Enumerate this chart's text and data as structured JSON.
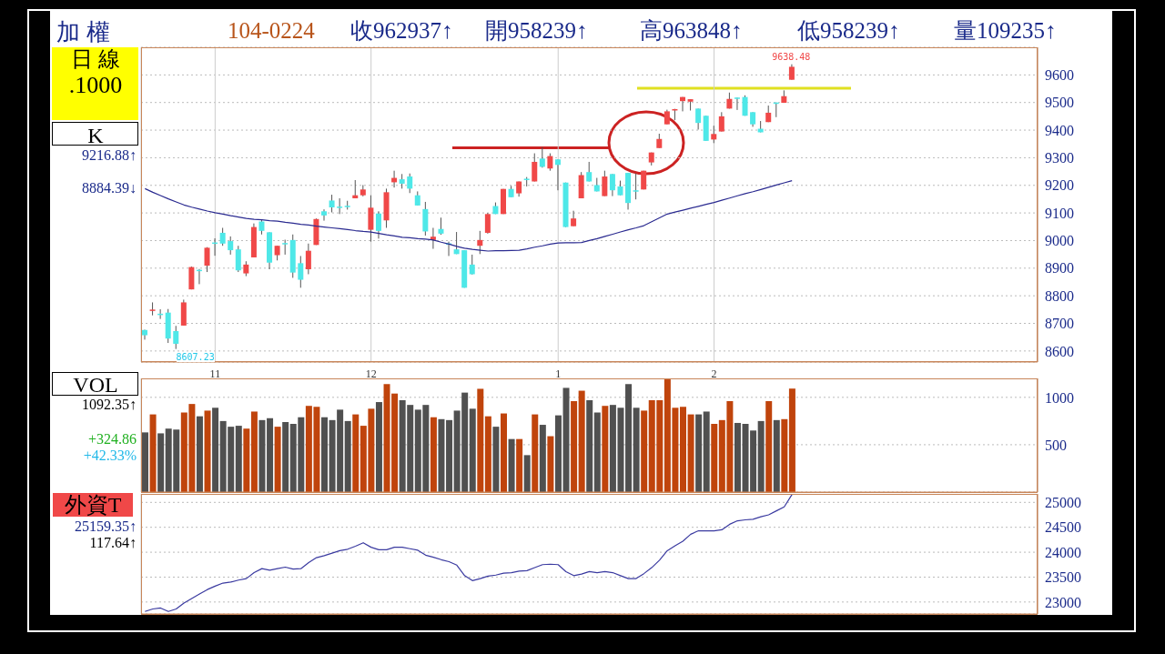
{
  "chart_data": [
    {
      "type": "candlestick",
      "title": "加 權",
      "categories": [
        null,
        null,
        null,
        null,
        null,
        null,
        null,
        null,
        null,
        "11",
        null,
        null,
        null,
        null,
        null,
        null,
        null,
        null,
        null,
        null,
        null,
        null,
        null,
        null,
        null,
        null,
        null,
        null,
        null,
        "12",
        null,
        null,
        null,
        null,
        null,
        null,
        null,
        null,
        null,
        null,
        null,
        null,
        null,
        null,
        null,
        null,
        null,
        null,
        null,
        null,
        null,
        null,
        null,
        "1",
        null,
        null,
        null,
        null,
        null,
        null,
        null,
        null,
        null,
        null,
        null,
        null,
        null,
        null,
        null,
        null,
        null,
        null,
        null,
        "2",
        null,
        null,
        null,
        null,
        null,
        null,
        null,
        null,
        null,
        null,
        null,
        null,
        null,
        null,
        null,
        null,
        null,
        null,
        null,
        null,
        null,
        null,
        null,
        null,
        null,
        null,
        null,
        null,
        null,
        null,
        null,
        null,
        null,
        null,
        null,
        null,
        null,
        null,
        null,
        null,
        null
      ],
      "ohlc": [
        [
          8676,
          8677,
          8641,
          8657
        ],
        [
          8745,
          8776,
          8729,
          8750
        ],
        [
          8735,
          8751,
          8716,
          8731
        ],
        [
          8739,
          8752,
          8629,
          8645
        ],
        [
          8672,
          8691,
          8607.23,
          8626
        ],
        [
          8692,
          8786,
          8692,
          8776
        ],
        [
          8823,
          8906,
          8823,
          8904
        ],
        [
          8894,
          8897,
          8842,
          8890
        ],
        [
          8909,
          8976,
          8886,
          8974
        ],
        [
          8993,
          9008,
          8945,
          8989
        ],
        [
          9028,
          9046,
          8981,
          8989
        ],
        [
          8998,
          9015,
          8949,
          8965
        ],
        [
          8968,
          8981,
          8886,
          8892
        ],
        [
          8881,
          8925,
          8871,
          8913
        ],
        [
          8939,
          9062,
          8939,
          9049
        ],
        [
          9069,
          9075,
          9022,
          9035
        ],
        [
          9030,
          9030,
          8896,
          8920
        ],
        [
          8947,
          8981,
          8928,
          8981
        ],
        [
          8991,
          9003,
          8949,
          8987
        ],
        [
          9002,
          9022,
          8865,
          8884
        ],
        [
          8918,
          8944,
          8829,
          8858
        ],
        [
          8896,
          8989,
          8878,
          8963
        ],
        [
          8984,
          9080,
          8984,
          9078
        ],
        [
          9106,
          9113,
          9072,
          9091
        ],
        [
          9145,
          9166,
          9102,
          9120
        ],
        [
          9123,
          9153,
          9096,
          9119
        ],
        [
          9126,
          9144,
          9112,
          9122
        ],
        [
          9153,
          9219,
          9153,
          9164
        ],
        [
          9164,
          9201,
          9160,
          9185
        ],
        [
          9039,
          9164,
          8996,
          9119
        ],
        [
          9098,
          9106,
          9007,
          9035
        ],
        [
          9073,
          9188,
          9046,
          9175
        ],
        [
          9211,
          9253,
          9192,
          9227
        ],
        [
          9222,
          9241,
          9188,
          9206
        ],
        [
          9232,
          9243,
          9172,
          9188
        ],
        [
          9164,
          9178,
          9127,
          9127
        ],
        [
          9114,
          9140,
          9018,
          9033
        ],
        [
          9002,
          9046,
          8970,
          9014
        ],
        [
          9042,
          9083,
          9021,
          9025
        ],
        [
          8990,
          8996,
          8944,
          8986
        ],
        [
          8968,
          9031,
          8951,
          8951
        ],
        [
          8965,
          8965,
          8829,
          8829
        ],
        [
          8913,
          8949,
          8877,
          8878
        ],
        [
          8981,
          9035,
          8951,
          9002
        ],
        [
          9028,
          9100,
          9025,
          9096
        ],
        [
          9125,
          9138,
          9096,
          9096
        ],
        [
          9096,
          9187,
          9096,
          9187
        ],
        [
          9187,
          9198,
          9157,
          9157
        ],
        [
          9171,
          9214,
          9159,
          9214
        ],
        [
          9224,
          9230,
          9196,
          9220
        ],
        [
          9214,
          9316,
          9214,
          9285
        ],
        [
          9297,
          9338,
          9264,
          9267
        ],
        [
          9261,
          9316,
          9253,
          9306
        ],
        [
          9294,
          9294,
          9182,
          9274
        ],
        [
          9210,
          9210,
          9049,
          9049
        ],
        [
          9052,
          9108,
          9052,
          9080
        ],
        [
          9153,
          9248,
          9153,
          9237
        ],
        [
          9248,
          9285,
          9214,
          9214
        ],
        [
          9201,
          9227,
          9178,
          9178
        ],
        [
          9161,
          9253,
          9161,
          9232
        ],
        [
          9241,
          9241,
          9161,
          9182
        ],
        [
          9196,
          9217,
          9164,
          9164
        ],
        [
          9245,
          9245,
          9112,
          9136
        ],
        [
          9182,
          9243,
          9149,
          9178
        ],
        [
          9185,
          9253,
          9185,
          9253
        ],
        [
          9283,
          9319,
          9272,
          9319
        ],
        [
          9335,
          9387,
          9335,
          9368
        ],
        [
          9421,
          9474,
          9421,
          9468
        ],
        [
          9473,
          9477,
          9436,
          9476
        ],
        [
          9505,
          9520,
          9468,
          9520
        ],
        [
          9503,
          9512,
          9471,
          9512
        ],
        [
          9478,
          9478,
          9402,
          9426
        ],
        [
          9452,
          9452,
          9361,
          9361
        ],
        [
          9366,
          9416,
          9353,
          9386
        ],
        [
          9395,
          9465,
          9395,
          9450
        ],
        [
          9478,
          9536,
          9478,
          9513
        ],
        [
          9518,
          9518,
          9473,
          9516
        ],
        [
          9520,
          9526,
          9452,
          9452
        ],
        [
          9465,
          9465,
          9412,
          9421
        ],
        [
          9405,
          9433,
          9392,
          9392
        ],
        [
          9429,
          9489,
          9429,
          9463
        ],
        [
          9500,
          9500,
          9447,
          9498
        ],
        [
          9499,
          9544,
          9499,
          9523
        ],
        [
          9582.39,
          9638.48,
          9582.39,
          9629.37
        ],
        null,
        null,
        null,
        null,
        null,
        null,
        null,
        null,
        null,
        null,
        null,
        null,
        null,
        null,
        null,
        null,
        null,
        null,
        null,
        null,
        null,
        null,
        null,
        null,
        null,
        null,
        null,
        null,
        null,
        null,
        null
      ],
      "colors": [
        "#4ee8e8",
        "#f04848",
        "#4ee8e8",
        "#4ee8e8",
        "#4ee8e8",
        "#f04848",
        "#f04848",
        "#4ee8e8",
        "#f04848",
        "#4ee8e8",
        "#4ee8e8",
        "#4ee8e8",
        "#4ee8e8",
        "#f04848",
        "#f04848",
        "#4ee8e8",
        "#4ee8e8",
        "#f04848",
        "#4ee8e8",
        "#4ee8e8",
        "#4ee8e8",
        "#f04848",
        "#f04848",
        "#4ee8e8",
        "#4ee8e8",
        "#4ee8e8",
        "#4ee8e8",
        "#f04848",
        "#f04848",
        "#f04848",
        "#4ee8e8",
        "#f04848",
        "#f04848",
        "#4ee8e8",
        "#4ee8e8",
        "#4ee8e8",
        "#4ee8e8",
        "#f04848",
        "#4ee8e8",
        "#4ee8e8",
        "#4ee8e8",
        "#4ee8e8",
        "#4ee8e8",
        "#f04848",
        "#f04848",
        "#4ee8e8",
        "#f04848",
        "#4ee8e8",
        "#f04848",
        "#4ee8e8",
        "#f04848",
        "#4ee8e8",
        "#f04848",
        "#4ee8e8",
        "#4ee8e8",
        "#f04848",
        "#f04848",
        "#4ee8e8",
        "#4ee8e8",
        "#f04848",
        "#4ee8e8",
        "#4ee8e8",
        "#4ee8e8",
        "#4ee8e8",
        "#f04848",
        "#f04848",
        "#f04848",
        "#f04848",
        "#f04848",
        "#f04848",
        "#f04848",
        "#4ee8e8",
        "#4ee8e8",
        "#f04848",
        "#f04848",
        "#f04848",
        "#4ee8e8",
        "#4ee8e8",
        "#4ee8e8",
        "#4ee8e8",
        "#f04848",
        "#4ee8e8",
        "#f04848",
        "#f04848",
        null,
        null,
        null,
        null,
        null,
        null,
        null,
        null,
        null,
        null,
        null,
        null,
        null,
        null,
        null,
        null,
        null,
        null,
        null,
        null,
        null,
        null,
        null,
        null,
        null,
        null,
        null,
        null,
        null,
        null,
        null
      ],
      "series": [
        {
          "type": "line",
          "color": "#2a2a90",
          "values": [
            9188,
            9175,
            9163,
            9151,
            9140,
            9129,
            9121,
            9114,
            9107,
            9101,
            9096,
            9090,
            9085,
            9080,
            9077,
            9075,
            9072,
            9070,
            9066,
            9063,
            9059,
            9056,
            9052,
            9049,
            9046,
            9043,
            9040,
            9036,
            9033,
            9031,
            9026,
            9021,
            9017,
            9012,
            9010,
            9007,
            9005,
            9002,
            8994,
            8987,
            8979,
            8972,
            8968,
            8965,
            8962,
            8963,
            8963,
            8964,
            8965,
            8970,
            8976,
            8981,
            8987,
            8991,
            8992,
            8992,
            8993,
            9000,
            9007,
            9015,
            9023,
            9031,
            9039,
            9046,
            9054,
            9068,
            9082,
            9096,
            9103,
            9110,
            9117,
            9124,
            9131,
            9138,
            9146,
            9154,
            9162,
            9170,
            9177,
            9185,
            9193,
            9201,
            9209,
            9217,
            null,
            null,
            null,
            null,
            null,
            null,
            null,
            null,
            null,
            null,
            null,
            null,
            null,
            null,
            null,
            null,
            null,
            null,
            null,
            null,
            null,
            null,
            null,
            null,
            null,
            null,
            null,
            null,
            null,
            null,
            null
          ]
        }
      ],
      "ylim": [
        8560,
        9700
      ],
      "yticks": [
        8600,
        8700,
        8800,
        8900,
        9000,
        9100,
        9200,
        9300,
        9400,
        9500,
        9600
      ],
      "grid": true,
      "annotations": [
        "104-0224",
        "收962937↑",
        "開958239↑",
        "高963848↑",
        "低958239↑",
        "量109235↑",
        "日 線",
        ".1000",
        "K",
        "9216.88↑",
        "8884.39↓",
        "9638.48",
        "8607.23"
      ]
    },
    {
      "type": "bar",
      "categories": [
        null,
        null,
        null,
        null,
        null,
        null,
        null,
        null,
        null,
        "11",
        null,
        null,
        null,
        null,
        null,
        null,
        null,
        null,
        null,
        null,
        null,
        null,
        null,
        null,
        null,
        null,
        null,
        null,
        null,
        "12",
        null,
        null,
        null,
        null,
        null,
        null,
        null,
        null,
        null,
        null,
        null,
        null,
        null,
        null,
        null,
        null,
        null,
        null,
        null,
        null,
        null,
        null,
        null,
        "1",
        null,
        null,
        null,
        null,
        null,
        null,
        null,
        null,
        null,
        null,
        null,
        null,
        null,
        null,
        null,
        null,
        null,
        null,
        null,
        "2",
        null,
        null,
        null,
        null,
        null,
        null,
        null,
        null,
        null,
        null,
        null,
        null,
        null,
        null,
        null,
        null,
        null,
        null,
        null,
        null,
        null,
        null,
        null,
        null,
        null,
        null,
        null,
        null,
        null,
        null,
        null,
        null,
        null,
        null,
        null,
        null,
        null,
        null,
        null,
        null,
        null
      ],
      "values": [
        630,
        820,
        620,
        670,
        660,
        840,
        930,
        800,
        860,
        890,
        750,
        690,
        700,
        670,
        850,
        760,
        780,
        690,
        740,
        720,
        790,
        910,
        900,
        790,
        760,
        870,
        750,
        820,
        700,
        880,
        950,
        1140,
        1040,
        970,
        920,
        870,
        920,
        790,
        770,
        760,
        860,
        1050,
        880,
        1090,
        800,
        690,
        830,
        560,
        560,
        390,
        820,
        710,
        590,
        810,
        1100,
        960,
        1070,
        970,
        840,
        910,
        920,
        890,
        1140,
        890,
        860,
        970,
        970,
        1190,
        890,
        900,
        820,
        820,
        850,
        720,
        760,
        960,
        730,
        720,
        650,
        750,
        960,
        760,
        770,
        1092.35,
        null,
        null,
        null,
        null,
        null,
        null,
        null,
        null,
        null,
        null,
        null,
        null,
        null,
        null,
        null,
        null,
        null,
        null,
        null,
        null,
        null,
        null,
        null,
        null,
        null,
        null,
        null,
        null,
        null,
        null,
        null
      ],
      "colors": [
        "#505050",
        "#c0440c",
        "#505050",
        "#505050",
        "#505050",
        "#c0440c",
        "#c0440c",
        "#505050",
        "#c0440c",
        "#505050",
        "#505050",
        "#505050",
        "#505050",
        "#c0440c",
        "#c0440c",
        "#505050",
        "#505050",
        "#c0440c",
        "#505050",
        "#505050",
        "#505050",
        "#c0440c",
        "#c0440c",
        "#505050",
        "#505050",
        "#505050",
        "#505050",
        "#c0440c",
        "#c0440c",
        "#c0440c",
        "#505050",
        "#c0440c",
        "#c0440c",
        "#505050",
        "#505050",
        "#505050",
        "#505050",
        "#c0440c",
        "#505050",
        "#505050",
        "#505050",
        "#505050",
        "#505050",
        "#c0440c",
        "#c0440c",
        "#505050",
        "#c0440c",
        "#505050",
        "#c0440c",
        "#505050",
        "#c0440c",
        "#505050",
        "#c0440c",
        "#505050",
        "#505050",
        "#c0440c",
        "#c0440c",
        "#505050",
        "#505050",
        "#c0440c",
        "#505050",
        "#505050",
        "#505050",
        "#505050",
        "#c0440c",
        "#c0440c",
        "#c0440c",
        "#c0440c",
        "#c0440c",
        "#c0440c",
        "#c0440c",
        "#505050",
        "#505050",
        "#c0440c",
        "#c0440c",
        "#c0440c",
        "#505050",
        "#505050",
        "#505050",
        "#505050",
        "#c0440c",
        "#505050",
        "#c0440c",
        "#c0440c",
        null,
        null,
        null,
        null,
        null,
        null,
        null,
        null,
        null,
        null,
        null,
        null,
        null,
        null,
        null,
        null,
        null,
        null,
        null,
        null,
        null,
        null,
        null,
        null,
        null,
        null,
        null,
        null,
        null,
        null,
        null
      ],
      "ylim": [
        0,
        1200
      ],
      "yticks": [
        500,
        1000
      ],
      "grid": true,
      "tick_labels": "y",
      "annotations": [
        "VOL",
        "1092.35↑",
        "+324.86",
        "+42.33%"
      ]
    },
    {
      "type": "line",
      "categories": [
        null,
        null,
        null,
        null,
        null,
        null,
        null,
        null,
        null,
        "11",
        null,
        null,
        null,
        null,
        null,
        null,
        null,
        null,
        null,
        null,
        null,
        null,
        null,
        null,
        null,
        null,
        null,
        null,
        null,
        "12",
        null,
        null,
        null,
        null,
        null,
        null,
        null,
        null,
        null,
        null,
        null,
        null,
        null,
        null,
        null,
        null,
        null,
        null,
        null,
        null,
        null,
        null,
        null,
        "1",
        null,
        null,
        null,
        null,
        null,
        null,
        null,
        null,
        null,
        null,
        null,
        null,
        null,
        null,
        null,
        null,
        null,
        null,
        null,
        "2",
        null,
        null,
        null,
        null,
        null,
        null,
        null,
        null,
        null,
        null,
        null,
        null,
        null,
        null,
        null,
        null,
        null,
        null,
        null,
        null,
        null,
        null,
        null,
        null,
        null,
        null,
        null,
        null,
        null,
        null,
        null,
        null,
        null,
        null,
        null,
        null,
        null,
        null,
        null,
        null,
        null
      ],
      "series": [
        {
          "color": "#3a3aa0",
          "values": [
            22810,
            22860,
            22880,
            22810,
            22860,
            22980,
            23070,
            23160,
            23250,
            23320,
            23380,
            23400,
            23440,
            23470,
            23590,
            23670,
            23640,
            23670,
            23700,
            23660,
            23670,
            23790,
            23890,
            23930,
            23980,
            24030,
            24060,
            24120,
            24190,
            24100,
            24050,
            24050,
            24100,
            24100,
            24070,
            24040,
            23940,
            23900,
            23850,
            23810,
            23740,
            23530,
            23430,
            23470,
            23520,
            23540,
            23580,
            23590,
            23620,
            23630,
            23690,
            23750,
            23760,
            23750,
            23610,
            23530,
            23560,
            23610,
            23590,
            23610,
            23590,
            23530,
            23470,
            23470,
            23570,
            23690,
            23840,
            24030,
            24130,
            24220,
            24360,
            24430,
            24430,
            24430,
            24450,
            24560,
            24630,
            24650,
            24660,
            24710,
            24750,
            24830,
            24910,
            25159.35,
            null,
            null,
            null,
            null,
            null,
            null,
            null,
            null,
            null,
            null,
            null,
            null,
            null,
            null,
            null,
            null,
            null,
            null,
            null,
            null,
            null,
            null,
            null,
            null,
            null,
            null,
            null,
            null,
            null,
            null,
            null
          ]
        }
      ],
      "ylim": [
        22760,
        25170
      ],
      "yticks": [
        23000,
        23500,
        24000,
        24500,
        25000
      ],
      "grid": true,
      "tick_labels": "y",
      "annotations": [
        "外資T",
        "25159.35↑",
        "117.64↑"
      ]
    }
  ]
}
